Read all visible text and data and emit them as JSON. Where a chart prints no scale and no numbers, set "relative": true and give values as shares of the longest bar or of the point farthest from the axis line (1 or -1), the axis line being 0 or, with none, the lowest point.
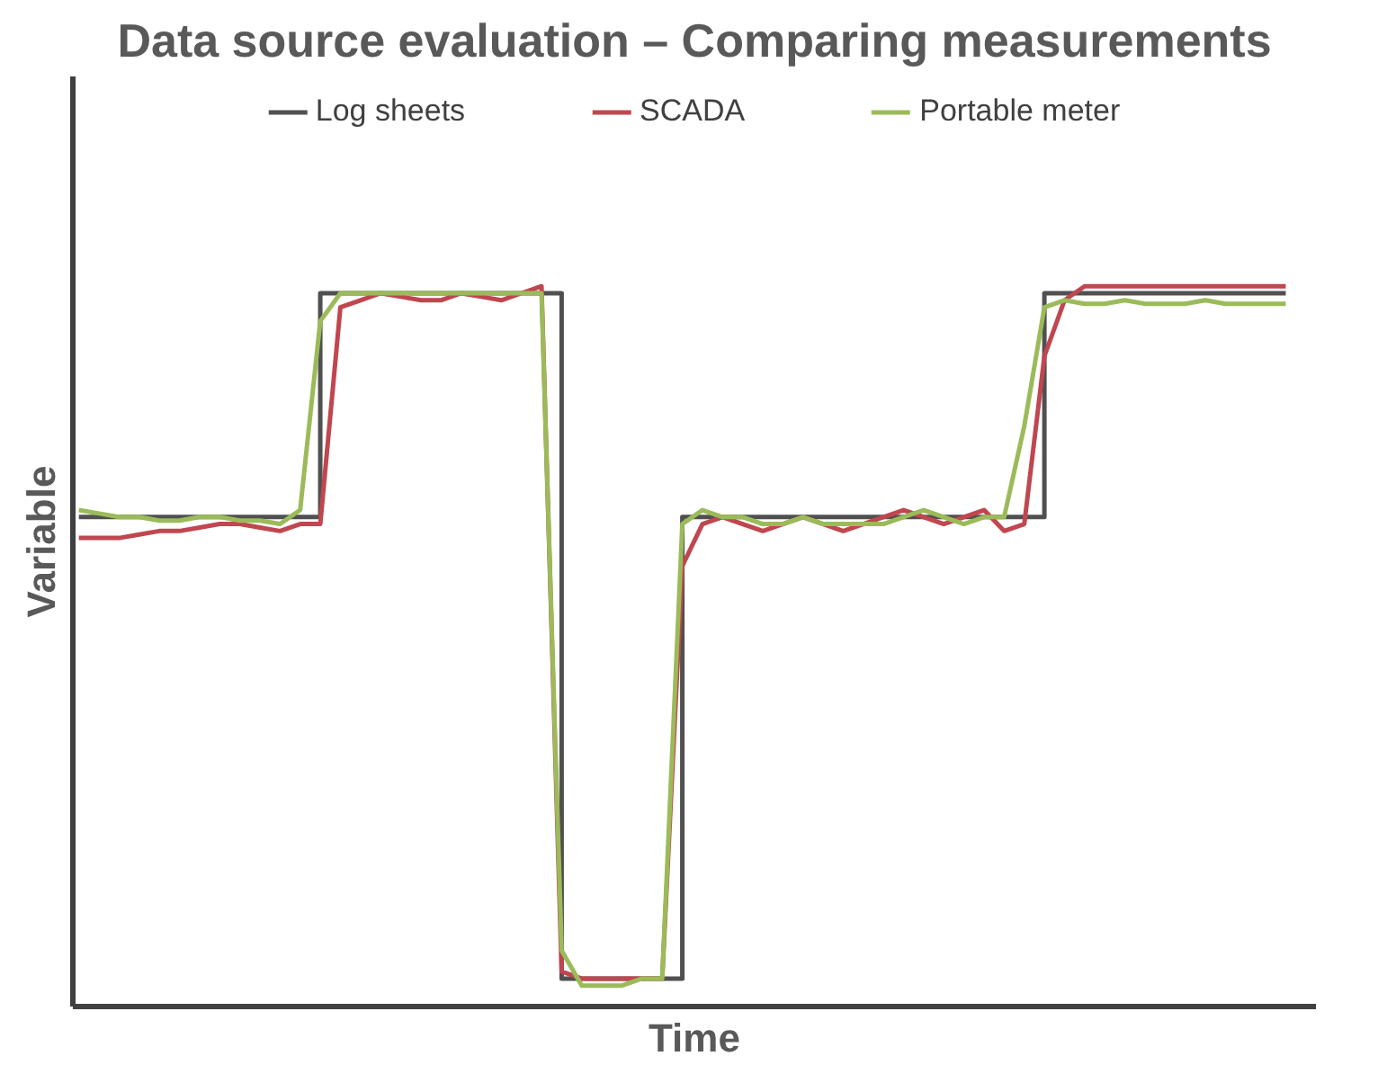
{
  "chart_data": {
    "type": "line",
    "title": "Data source evaluation – Comparing measurements",
    "xlabel": "Time",
    "ylabel": "Variable",
    "relative": true,
    "legend": "top",
    "categories": [
      null,
      null,
      null,
      null,
      null,
      null,
      null,
      null,
      null,
      null,
      null,
      null,
      null,
      null,
      null,
      null,
      null,
      null,
      null,
      null,
      null,
      null,
      null,
      null,
      null,
      null,
      null,
      null,
      null,
      null,
      null,
      null,
      null,
      null,
      null,
      null,
      null,
      null,
      null,
      null,
      null,
      null,
      null,
      null,
      null,
      null,
      null,
      null,
      null,
      null,
      null,
      null,
      null,
      null,
      null,
      null,
      null,
      null,
      null,
      null,
      null
    ],
    "series": [
      {
        "name": "Log sheets",
        "type": "step",
        "color": "#505050",
        "values": [
          0.67,
          0.67,
          0.67,
          0.67,
          0.67,
          0.67,
          0.67,
          0.67,
          0.67,
          0.67,
          0.67,
          0.67,
          0.99,
          0.99,
          0.99,
          0.99,
          0.99,
          0.99,
          0.99,
          0.99,
          0.99,
          0.99,
          0.99,
          0.99,
          0.01,
          0.01,
          0.01,
          0.01,
          0.01,
          0.01,
          0.67,
          0.67,
          0.67,
          0.67,
          0.67,
          0.67,
          0.67,
          0.67,
          0.67,
          0.67,
          0.67,
          0.67,
          0.67,
          0.67,
          0.67,
          0.67,
          0.67,
          0.67,
          0.99,
          0.99,
          0.99,
          0.99,
          0.99,
          0.99,
          0.99,
          0.99,
          0.99,
          0.99,
          0.99,
          0.99,
          0.99
        ]
      },
      {
        "name": "SCADA",
        "color": "#c0464f",
        "values": [
          0.64,
          0.64,
          0.64,
          0.645,
          0.65,
          0.65,
          0.655,
          0.66,
          0.66,
          0.655,
          0.65,
          0.66,
          0.66,
          0.97,
          0.98,
          0.99,
          0.985,
          0.98,
          0.98,
          0.99,
          0.985,
          0.98,
          0.99,
          1.0,
          0.02,
          0.01,
          0.01,
          0.01,
          0.01,
          0.01,
          0.6,
          0.66,
          0.67,
          0.66,
          0.65,
          0.66,
          0.67,
          0.66,
          0.65,
          0.66,
          0.67,
          0.68,
          0.67,
          0.66,
          0.67,
          0.68,
          0.65,
          0.66,
          0.9,
          0.98,
          1.0,
          1.0,
          1.0,
          1.0,
          1.0,
          1.0,
          1.0,
          1.0,
          1.0,
          1.0,
          1.0
        ]
      },
      {
        "name": "Portable meter",
        "color": "#9bbb59",
        "values": [
          0.68,
          0.675,
          0.67,
          0.67,
          0.665,
          0.665,
          0.67,
          0.67,
          0.665,
          0.665,
          0.66,
          0.68,
          0.95,
          0.99,
          0.99,
          0.99,
          0.99,
          0.99,
          0.99,
          0.99,
          0.99,
          0.99,
          0.99,
          0.99,
          0.05,
          0.0,
          0.0,
          0.0,
          0.01,
          0.01,
          0.66,
          0.68,
          0.67,
          0.67,
          0.66,
          0.66,
          0.67,
          0.66,
          0.66,
          0.66,
          0.66,
          0.67,
          0.68,
          0.67,
          0.66,
          0.67,
          0.67,
          0.8,
          0.97,
          0.98,
          0.975,
          0.975,
          0.98,
          0.975,
          0.975,
          0.975,
          0.98,
          0.975,
          0.975,
          0.975,
          0.975
        ]
      }
    ]
  }
}
